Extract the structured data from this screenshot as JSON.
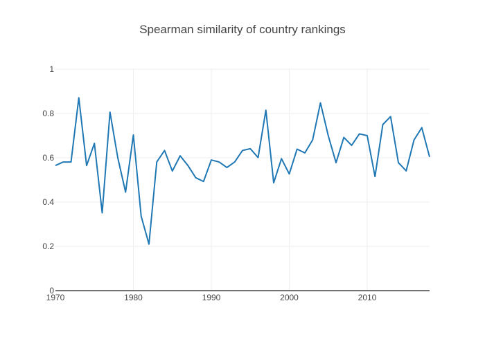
{
  "chart_data": {
    "type": "line",
    "title": "Spearman similarity of country rankings",
    "xlabel": "",
    "ylabel": "",
    "xlim": [
      1970,
      2018
    ],
    "ylim": [
      0,
      1
    ],
    "x_ticks": [
      1970,
      1980,
      1990,
      2000,
      2010
    ],
    "x_tick_labels": [
      "1970",
      "1980",
      "1990",
      "2000",
      "2010"
    ],
    "y_ticks": [
      0,
      0.2,
      0.4,
      0.6,
      0.8,
      1
    ],
    "y_tick_labels": [
      "0",
      "0.2",
      "0.4",
      "0.6",
      "0.8",
      "1"
    ],
    "grid": true,
    "legend": "none",
    "series": [
      {
        "color": "#1f77b4",
        "x": [
          1970,
          1971,
          1972,
          1973,
          1974,
          1975,
          1976,
          1977,
          1978,
          1979,
          1980,
          1981,
          1982,
          1983,
          1984,
          1985,
          1986,
          1987,
          1988,
          1989,
          1990,
          1991,
          1992,
          1993,
          1994,
          1995,
          1996,
          1997,
          1998,
          1999,
          2000,
          2001,
          2002,
          2003,
          2004,
          2005,
          2006,
          2007,
          2008,
          2009,
          2010,
          2011,
          2012,
          2013,
          2014,
          2015,
          2016,
          2017,
          2018
        ],
        "y": [
          0.565,
          0.581,
          0.581,
          0.871,
          0.565,
          0.665,
          0.351,
          0.806,
          0.6,
          0.445,
          0.703,
          0.336,
          0.21,
          0.581,
          0.633,
          0.54,
          0.609,
          0.565,
          0.51,
          0.493,
          0.59,
          0.581,
          0.556,
          0.581,
          0.633,
          0.641,
          0.601,
          0.815,
          0.487,
          0.596,
          0.527,
          0.639,
          0.622,
          0.681,
          0.848,
          0.7,
          0.578,
          0.692,
          0.656,
          0.708,
          0.7,
          0.515,
          0.75,
          0.786,
          0.578,
          0.541,
          0.68,
          0.736,
          0.604
        ]
      }
    ]
  },
  "colors": {
    "line": "#1f77b4",
    "grid": "#eeeeee",
    "axis": "#444444",
    "text": "#444444",
    "background": "#ffffff"
  }
}
